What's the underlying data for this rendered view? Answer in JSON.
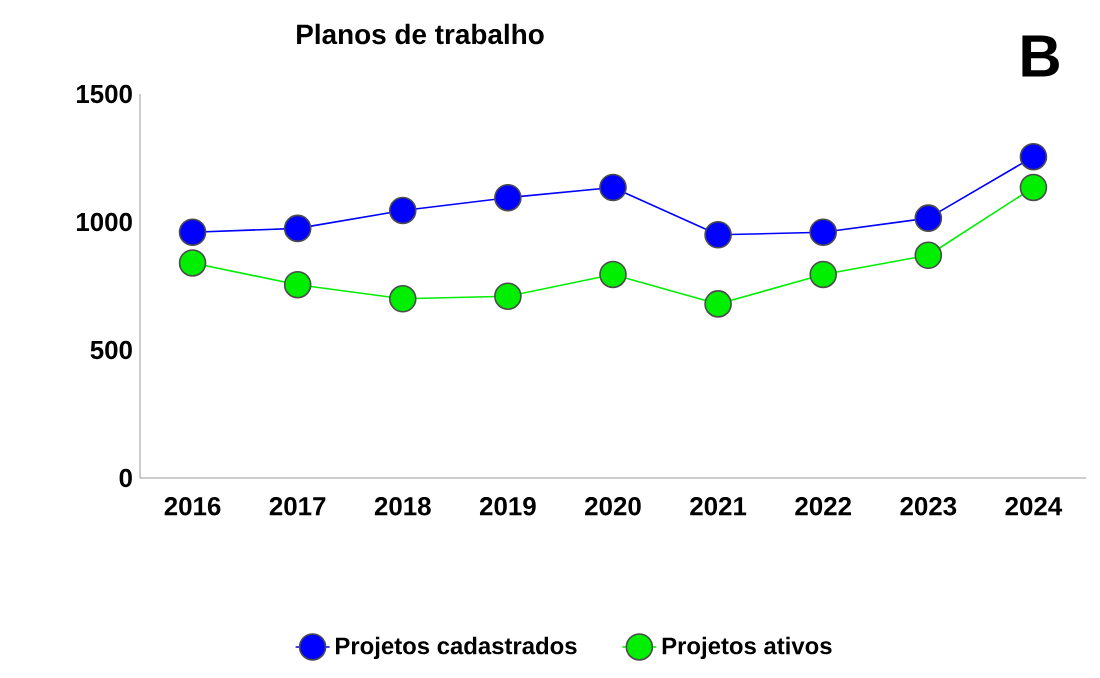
{
  "chart_data": {
    "type": "line",
    "title": "Planos de trabalho",
    "annotations": [
      "B"
    ],
    "categories": [
      "2016",
      "2017",
      "2018",
      "2019",
      "2020",
      "2021",
      "2022",
      "2023",
      "2024"
    ],
    "series": [
      {
        "name": "Projetos cadastrados",
        "color": "#0000ff",
        "values": [
          960,
          975,
          1045,
          1095,
          1135,
          950,
          960,
          1015,
          1255
        ]
      },
      {
        "name": "Projetos ativos",
        "color": "#00ee00",
        "values": [
          840,
          755,
          700,
          710,
          795,
          680,
          795,
          870,
          1135
        ]
      }
    ],
    "ylim": [
      0,
      1500
    ],
    "yticks": [
      0,
      500,
      1000,
      1500
    ],
    "marker": "circle",
    "legend": "bottom",
    "grid": false
  }
}
